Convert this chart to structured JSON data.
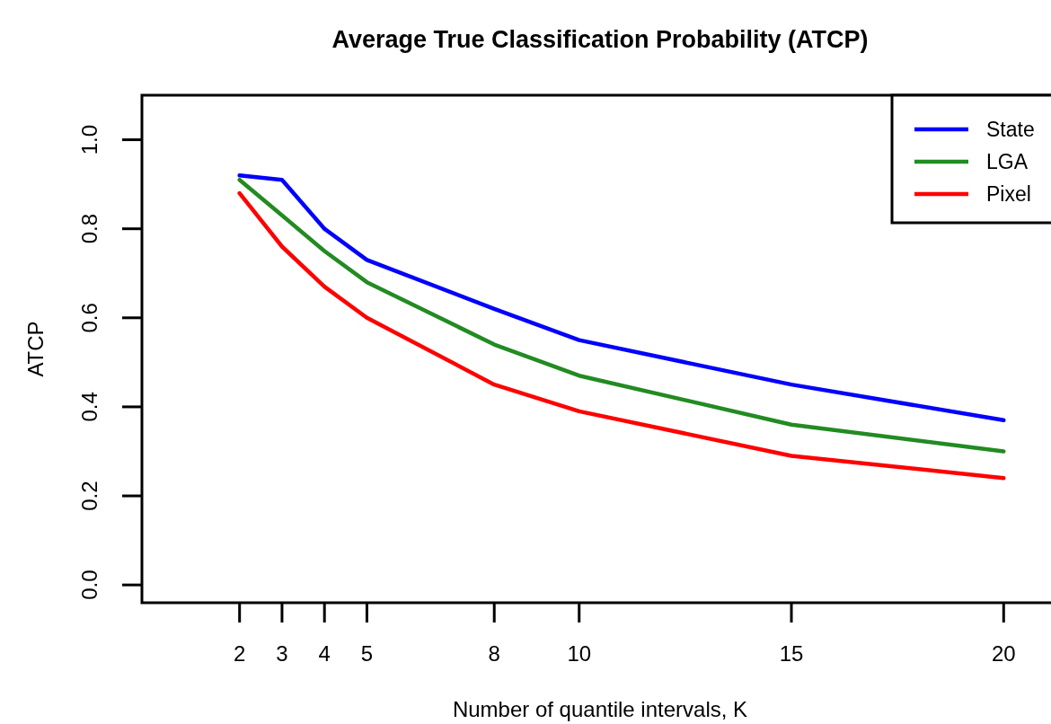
{
  "chart_data": {
    "type": "line",
    "title": "Average True Classification Probability (ATCP)",
    "xlabel": "Number of quantile intervals, K",
    "ylabel": "ATCP",
    "x": [
      2,
      3,
      4,
      5,
      8,
      10,
      15,
      20
    ],
    "series": [
      {
        "name": "State",
        "color": "#0000ff",
        "values": [
          0.92,
          0.91,
          0.8,
          0.73,
          0.62,
          0.55,
          0.45,
          0.37
        ]
      },
      {
        "name": "LGA",
        "color": "#228b22",
        "values": [
          0.91,
          0.83,
          0.75,
          0.68,
          0.54,
          0.47,
          0.36,
          0.3
        ]
      },
      {
        "name": "Pixel",
        "color": "#ff0000",
        "values": [
          0.88,
          0.76,
          0.67,
          0.6,
          0.45,
          0.39,
          0.29,
          0.24
        ]
      }
    ],
    "xlim": [
      -0.3,
      21.2
    ],
    "xticks": [
      2,
      3,
      4,
      5,
      8,
      10,
      15,
      20
    ],
    "ylim": [
      -0.04,
      1.1
    ],
    "yticks": [
      {
        "value": 0,
        "label": "0.0"
      },
      0.2,
      0.4,
      0.6,
      0.8,
      {
        "value": 1,
        "label": "1.0"
      }
    ],
    "legend": "top right",
    "marker": "none",
    "line_style": "solid",
    "grid": false
  }
}
